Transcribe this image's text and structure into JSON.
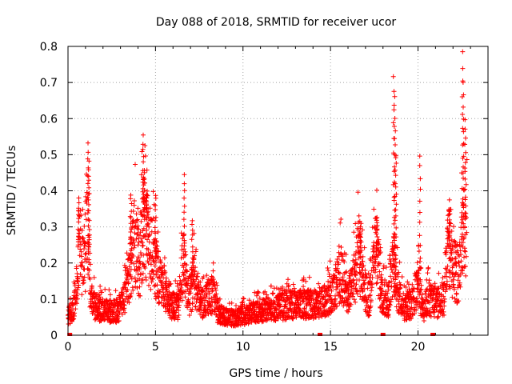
{
  "chart_data": {
    "type": "scatter",
    "title": "Day 088 of 2018, SRMTID for receiver ucor",
    "xlabel": "GPS time / hours",
    "ylabel": "SRMTID / TECUs",
    "xlim": [
      0,
      24
    ],
    "ylim": [
      0,
      0.8
    ],
    "xticks": [
      "0",
      "5",
      "10",
      "15",
      "20"
    ],
    "yticks": [
      "0",
      "0.1",
      "0.2",
      "0.3",
      "0.4",
      "0.5",
      "0.6",
      "0.7",
      "0.8"
    ],
    "grid": true,
    "marker": "+",
    "color": "#ff0000",
    "gap_marker_hours": [
      0.1,
      14.4,
      18.0,
      20.85
    ],
    "series": [
      {
        "name": "SRMTID",
        "profile": [
          [
            0.0,
            0.06
          ],
          [
            0.3,
            0.07
          ],
          [
            0.5,
            0.14
          ],
          [
            0.65,
            0.29
          ],
          [
            0.8,
            0.22
          ],
          [
            0.95,
            0.18
          ],
          [
            1.1,
            0.3
          ],
          [
            1.3,
            0.11
          ],
          [
            1.6,
            0.08
          ],
          [
            2.2,
            0.07
          ],
          [
            2.8,
            0.07
          ],
          [
            3.2,
            0.1
          ],
          [
            3.5,
            0.17
          ],
          [
            3.8,
            0.28
          ],
          [
            4.1,
            0.2
          ],
          [
            4.3,
            0.33
          ],
          [
            4.6,
            0.27
          ],
          [
            4.9,
            0.23
          ],
          [
            5.2,
            0.16
          ],
          [
            5.6,
            0.13
          ],
          [
            5.9,
            0.09
          ],
          [
            6.3,
            0.08
          ],
          [
            6.6,
            0.22
          ],
          [
            6.9,
            0.09
          ],
          [
            7.2,
            0.17
          ],
          [
            7.6,
            0.09
          ],
          [
            8.0,
            0.11
          ],
          [
            8.3,
            0.12
          ],
          [
            8.6,
            0.06
          ],
          [
            9.5,
            0.05
          ],
          [
            10.2,
            0.06
          ],
          [
            11.0,
            0.07
          ],
          [
            12.0,
            0.08
          ],
          [
            12.8,
            0.09
          ],
          [
            13.5,
            0.09
          ],
          [
            14.2,
            0.09
          ],
          [
            14.6,
            0.1
          ],
          [
            15.1,
            0.12
          ],
          [
            15.6,
            0.18
          ],
          [
            16.0,
            0.11
          ],
          [
            16.4,
            0.17
          ],
          [
            16.6,
            0.25
          ],
          [
            16.9,
            0.14
          ],
          [
            17.2,
            0.1
          ],
          [
            17.6,
            0.25
          ],
          [
            17.9,
            0.12
          ],
          [
            18.3,
            0.1
          ],
          [
            18.6,
            0.2
          ],
          [
            18.9,
            0.12
          ],
          [
            19.2,
            0.08
          ],
          [
            19.6,
            0.09
          ],
          [
            20.0,
            0.15
          ],
          [
            20.3,
            0.07
          ],
          [
            20.6,
            0.11
          ],
          [
            21.0,
            0.09
          ],
          [
            21.5,
            0.11
          ],
          [
            21.7,
            0.27
          ],
          [
            22.0,
            0.2
          ],
          [
            22.3,
            0.17
          ],
          [
            22.6,
            0.3
          ],
          [
            22.8,
            0.31
          ]
        ],
        "spikes": [
          [
            0.6,
            0.38
          ],
          [
            1.15,
            0.535
          ],
          [
            1.2,
            0.48
          ],
          [
            3.6,
            0.39
          ],
          [
            4.3,
            0.55
          ],
          [
            4.35,
            0.46
          ],
          [
            4.5,
            0.4
          ],
          [
            5.0,
            0.39
          ],
          [
            6.65,
            0.44
          ],
          [
            7.1,
            0.32
          ],
          [
            16.7,
            0.3
          ],
          [
            17.65,
            0.33
          ],
          [
            18.62,
            0.72
          ],
          [
            18.65,
            0.66
          ],
          [
            18.7,
            0.6
          ],
          [
            18.75,
            0.5
          ],
          [
            20.12,
            0.5
          ],
          [
            21.8,
            0.35
          ],
          [
            22.55,
            0.785
          ],
          [
            22.6,
            0.7
          ],
          [
            22.7,
            0.6
          ]
        ]
      }
    ]
  }
}
